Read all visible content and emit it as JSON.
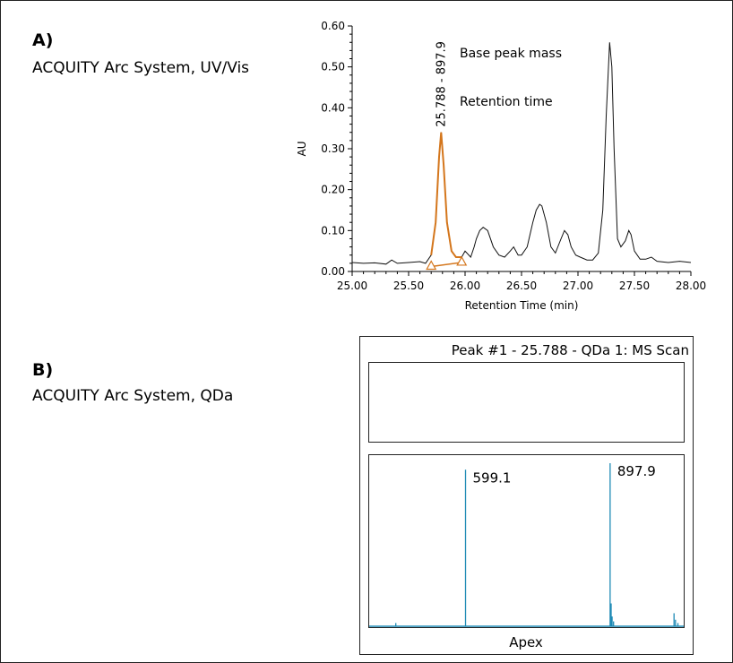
{
  "panel_a": {
    "letter": "A)",
    "description": "ACQUITY Arc System, UV/Vis"
  },
  "panel_b": {
    "letter": "B)",
    "description": "ACQUITY Arc System, QDa"
  },
  "colors": {
    "trace": "#111111",
    "peak_highlight": "#d4761c",
    "spectrum": "#1f8bb5",
    "frame": "#222222"
  },
  "chart_data": [
    {
      "type": "line",
      "xlabel": "Retention Time (min)",
      "ylabel": "AU",
      "xlim": [
        25.0,
        28.0
      ],
      "ylim": [
        0.0,
        0.6
      ],
      "x_ticks": [
        "25.00",
        "25.50",
        "26.00",
        "26.50",
        "27.00",
        "27.50",
        "28.00"
      ],
      "y_ticks": [
        "0.00",
        "0.10",
        "0.20",
        "0.30",
        "0.40",
        "0.50",
        "0.60"
      ],
      "peak_label": "25.788 - 897.9",
      "annotations": [
        "Base peak mass",
        "Retention time"
      ],
      "integrated_peak": {
        "apex": 25.788,
        "start": 25.7,
        "end": 25.97,
        "height": 0.34
      },
      "series": [
        {
          "x": [
            25.0,
            25.1,
            25.2,
            25.3,
            25.35,
            25.4,
            25.5,
            25.6,
            25.65,
            25.7,
            25.74,
            25.77,
            25.788,
            25.81,
            25.84,
            25.88,
            25.92,
            25.97,
            26.0,
            26.05,
            26.08,
            26.1,
            26.13,
            26.16,
            26.2,
            26.25,
            26.3,
            26.35,
            26.4,
            26.43,
            26.47,
            26.5,
            26.55,
            26.6,
            26.63,
            26.66,
            26.68,
            26.72,
            26.76,
            26.8,
            26.85,
            26.88,
            26.91,
            26.94,
            26.98,
            27.02,
            27.08,
            27.13,
            27.18,
            27.22,
            27.25,
            27.28,
            27.3,
            27.32,
            27.35,
            27.38,
            27.42,
            27.45,
            27.47,
            27.5,
            27.55,
            27.6,
            27.65,
            27.7,
            27.8,
            27.9,
            28.0
          ],
          "y": [
            0.022,
            0.02,
            0.021,
            0.018,
            0.028,
            0.02,
            0.022,
            0.024,
            0.02,
            0.04,
            0.12,
            0.28,
            0.34,
            0.26,
            0.12,
            0.05,
            0.035,
            0.035,
            0.05,
            0.035,
            0.06,
            0.08,
            0.1,
            0.108,
            0.1,
            0.06,
            0.04,
            0.035,
            0.05,
            0.06,
            0.04,
            0.04,
            0.06,
            0.12,
            0.15,
            0.164,
            0.16,
            0.12,
            0.06,
            0.045,
            0.08,
            0.1,
            0.09,
            0.06,
            0.04,
            0.035,
            0.028,
            0.028,
            0.045,
            0.15,
            0.38,
            0.56,
            0.5,
            0.3,
            0.08,
            0.06,
            0.075,
            0.1,
            0.09,
            0.05,
            0.03,
            0.03,
            0.035,
            0.025,
            0.022,
            0.025,
            0.022
          ]
        }
      ]
    },
    {
      "type": "bar",
      "title": "Peak #1 - 25.788 - QDa 1: MS Scan",
      "footer": "Apex",
      "peak_labels": [
        "599.1",
        "897.9"
      ],
      "xlim": [
        400,
        1050
      ],
      "peaks": [
        {
          "mz": 599.1,
          "intensity": 0.96,
          "label": "599.1"
        },
        {
          "mz": 897.9,
          "intensity": 1.0,
          "label": "897.9"
        },
        {
          "mz": 900.0,
          "intensity": 0.14
        },
        {
          "mz": 902.0,
          "intensity": 0.06
        },
        {
          "mz": 905.0,
          "intensity": 0.03
        },
        {
          "mz": 1030.0,
          "intensity": 0.08
        },
        {
          "mz": 1033.0,
          "intensity": 0.04
        },
        {
          "mz": 1038.0,
          "intensity": 0.02
        },
        {
          "mz": 455.0,
          "intensity": 0.02
        }
      ]
    }
  ]
}
